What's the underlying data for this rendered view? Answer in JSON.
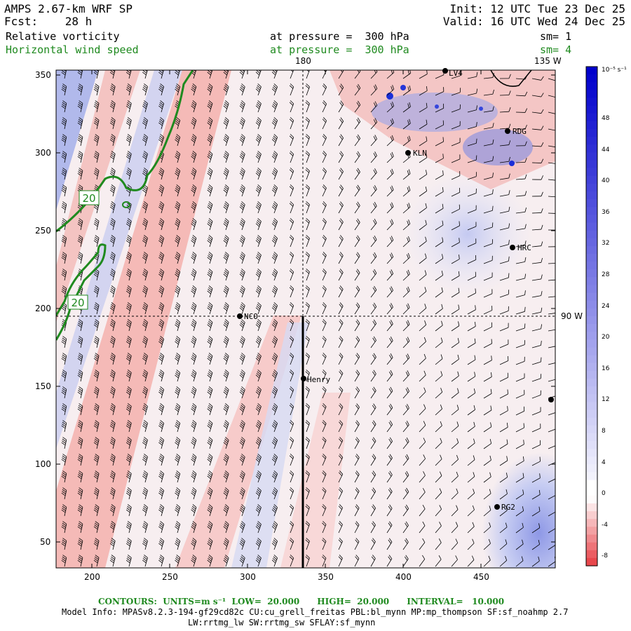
{
  "header": {
    "model": "AMPS 2.67-km WRF SP",
    "forecast_label": "Fcst:",
    "forecast_hours": "28 h",
    "init": "Init: 12 UTC Tue 23 Dec 25",
    "valid": "Valid: 16 UTC Wed 24 Dec 25",
    "field1": "Relative vorticity",
    "field1_level": "at pressure =  300 hPa",
    "field1_sm": "sm= 1",
    "field2": "Horizontal wind speed",
    "field2_level": "at pressure =  300 hPa",
    "field2_sm": "sm= 4"
  },
  "map": {
    "lon_label_top_1": "180",
    "lon_label_top_2": "135 W",
    "lon_label_right": "90 W",
    "x_ticks": [
      "200",
      "250",
      "300",
      "350",
      "400",
      "450"
    ],
    "y_ticks": [
      "350",
      "300",
      "250",
      "200",
      "150",
      "100",
      "50"
    ],
    "contour_labels": [
      "20",
      "20"
    ],
    "stations": [
      {
        "name": "NCO"
      },
      {
        "name": "Henry"
      },
      {
        "name": "KLN"
      },
      {
        "name": "RDG"
      },
      {
        "name": "HRC"
      },
      {
        "name": "RG2"
      },
      {
        "name": "LV4"
      },
      {
        "name": ""
      }
    ]
  },
  "colorbar": {
    "units": "10⁻⁵ s⁻¹",
    "labels": [
      "48",
      "44",
      "40",
      "36",
      "32",
      "28",
      "24",
      "20",
      "16",
      "12",
      "8",
      "4",
      "0",
      "-4",
      "-8"
    ],
    "neg_color": "#e8474c",
    "pos_color": "#0000cc"
  },
  "footer": {
    "contours": "CONTOURS:  UNITS=m s⁻¹  LOW=  20.000      HIGH=  20.000      INTERVAL=   10.000",
    "model_info_1": "Model Info: MPASv8.2.3-194-gf29cd82c CU:cu_grell_freitas PBL:bl_mynn MP:mp_thompson SF:sf_noahmp 2.7",
    "model_info_2": "LW:rrtmg_lw SW:rrtmg_sw SFLAY:sf_mynn"
  },
  "colors": {
    "contour_green": "#1f8a1f",
    "barb": "#000000"
  }
}
